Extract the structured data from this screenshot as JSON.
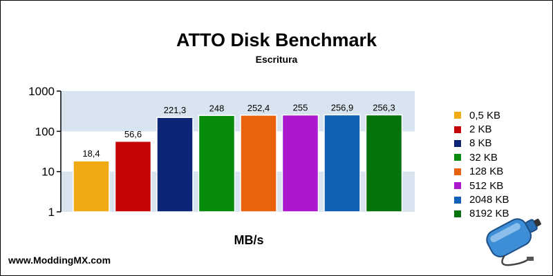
{
  "chart_data": {
    "type": "bar",
    "title": "ATTO Disk Benchmark",
    "subtitle": "Escritura",
    "xlabel": "MB/s",
    "ylabel": "",
    "yscale": "log",
    "ylim": [
      1,
      1000
    ],
    "yticks": [
      "1",
      "10",
      "100",
      "1000"
    ],
    "categories": [
      "0,5 KB",
      "2 KB",
      "8 KB",
      "32 KB",
      "128 KB",
      "512 KB",
      "2048 KB",
      "8192 KB"
    ],
    "values": [
      18.4,
      56.6,
      221.3,
      248,
      252.4,
      255,
      256.9,
      256.3
    ],
    "value_labels": [
      "18,4",
      "56,6",
      "221,3",
      "248",
      "252,4",
      "255",
      "256,9",
      "256,3"
    ],
    "colors": [
      "#f0ab14",
      "#c40608",
      "#0c2577",
      "#078b0b",
      "#e9630e",
      "#ab18cd",
      "#1261b7",
      "#05720c"
    ],
    "legend_position": "right",
    "band_color": "#d8e4ef"
  },
  "footer": {
    "site": "www.ModdingMX.com"
  },
  "logo_icon": "water-bottle-logo-icon"
}
